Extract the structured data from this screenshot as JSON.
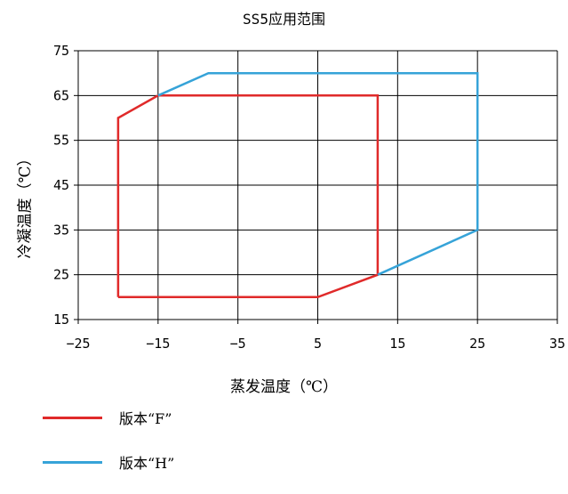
{
  "chart_data": {
    "type": "line",
    "title": "SS5应用范围",
    "xlabel": "蒸发温度（℃）",
    "ylabel": "冷凝温度（℃）",
    "xlim": [
      -25,
      35
    ],
    "ylim": [
      15,
      75
    ],
    "xticks": [
      -25,
      -15,
      -5,
      5,
      15,
      25,
      35
    ],
    "yticks": [
      15,
      25,
      35,
      45,
      55,
      65,
      75
    ],
    "xtick_labels": [
      "−25",
      "−15",
      "−5",
      "5",
      "15",
      "25",
      "35"
    ],
    "ytick_labels": [
      "15",
      "25",
      "35",
      "45",
      "55",
      "65",
      "75"
    ],
    "grid": true,
    "legend_position": "bottom-left",
    "series": [
      {
        "name": "版本“F”",
        "color": "#e02a2a",
        "points": [
          [
            -20,
            20
          ],
          [
            -20,
            60
          ],
          [
            -15,
            65
          ],
          [
            12.5,
            65
          ],
          [
            12.5,
            25
          ],
          [
            5,
            20
          ],
          [
            -20,
            20
          ]
        ]
      },
      {
        "name": "版本“H”",
        "color": "#36a3d8",
        "points": [
          [
            -15,
            65
          ],
          [
            -8.7,
            70
          ],
          [
            25,
            70
          ],
          [
            25,
            35
          ],
          [
            12.5,
            25
          ]
        ]
      }
    ]
  }
}
